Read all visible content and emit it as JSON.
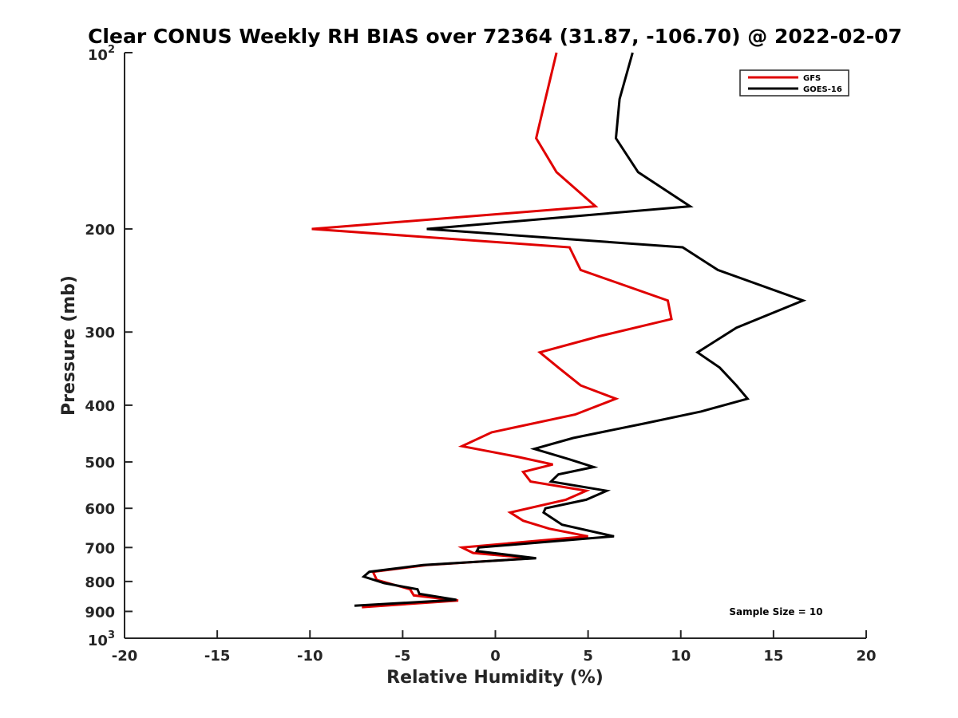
{
  "chart_data": {
    "type": "line",
    "title": "Clear CONUS Weekly RH BIAS over 72364 (31.87, -106.70) @ 2022-02-07",
    "xlabel": "Relative Humidity (%)",
    "ylabel": "Pressure (mb)",
    "xlim": [
      -20,
      20
    ],
    "ylim": [
      100,
      1000
    ],
    "y_scale": "log",
    "y_reversed": true,
    "x_ticks": [
      "-20",
      "-15",
      "-10",
      "-5",
      "0",
      "5",
      "10",
      "15",
      "20"
    ],
    "y_ticks": [
      {
        "value": 100,
        "base": "10",
        "exp": "2"
      },
      {
        "value": 200,
        "label": "200"
      },
      {
        "value": 300,
        "label": "300"
      },
      {
        "value": 400,
        "label": "400"
      },
      {
        "value": 500,
        "label": "500"
      },
      {
        "value": 600,
        "label": "600"
      },
      {
        "value": 700,
        "label": "700"
      },
      {
        "value": 800,
        "label": "800"
      },
      {
        "value": 900,
        "label": "900"
      },
      {
        "value": 1000,
        "base": "10",
        "exp": "3"
      }
    ],
    "grid": false,
    "legend_position": "top-right",
    "annotation": "Sample Size = 10",
    "series": [
      {
        "name": "GFS",
        "color": "#e00000",
        "points": [
          [
            3.3,
            100
          ],
          [
            2.7,
            120
          ],
          [
            2.2,
            140
          ],
          [
            3.3,
            160
          ],
          [
            5.4,
            183
          ],
          [
            -9.9,
            200
          ],
          [
            4.0,
            215
          ],
          [
            4.6,
            235
          ],
          [
            9.3,
            265
          ],
          [
            9.5,
            285
          ],
          [
            5.6,
            305
          ],
          [
            2.4,
            325
          ],
          [
            3.4,
            345
          ],
          [
            4.6,
            370
          ],
          [
            6.5,
            390
          ],
          [
            4.3,
            415
          ],
          [
            -0.2,
            445
          ],
          [
            -1.8,
            470
          ],
          [
            1.2,
            490
          ],
          [
            3.1,
            505
          ],
          [
            1.5,
            520
          ],
          [
            1.9,
            540
          ],
          [
            4.9,
            560
          ],
          [
            3.8,
            580
          ],
          [
            0.8,
            610
          ],
          [
            1.5,
            630
          ],
          [
            2.9,
            650
          ],
          [
            5.0,
            670
          ],
          [
            -1.8,
            700
          ],
          [
            -1.2,
            715
          ],
          [
            2.0,
            730
          ],
          [
            -3.7,
            750
          ],
          [
            -6.6,
            770
          ],
          [
            -6.4,
            795
          ],
          [
            -4.6,
            825
          ],
          [
            -4.4,
            845
          ],
          [
            -2.0,
            862
          ],
          [
            -7.2,
            885
          ]
        ]
      },
      {
        "name": "GOES-16",
        "color": "#000000",
        "points": [
          [
            7.4,
            100
          ],
          [
            6.7,
            120
          ],
          [
            6.5,
            140
          ],
          [
            7.7,
            160
          ],
          [
            10.5,
            183
          ],
          [
            -3.7,
            200
          ],
          [
            10.1,
            215
          ],
          [
            12.0,
            235
          ],
          [
            16.6,
            265
          ],
          [
            13.0,
            295
          ],
          [
            10.9,
            325
          ],
          [
            12.1,
            345
          ],
          [
            13.0,
            370
          ],
          [
            13.6,
            390
          ],
          [
            11.1,
            410
          ],
          [
            8.0,
            430
          ],
          [
            4.2,
            455
          ],
          [
            2.1,
            475
          ],
          [
            4.0,
            495
          ],
          [
            5.3,
            510
          ],
          [
            3.4,
            525
          ],
          [
            3.0,
            540
          ],
          [
            6.0,
            560
          ],
          [
            4.9,
            580
          ],
          [
            2.7,
            600
          ],
          [
            2.6,
            610
          ],
          [
            3.6,
            640
          ],
          [
            6.4,
            670
          ],
          [
            -0.9,
            700
          ],
          [
            -1.0,
            710
          ],
          [
            2.2,
            730
          ],
          [
            -3.9,
            750
          ],
          [
            -6.8,
            770
          ],
          [
            -7.1,
            785
          ],
          [
            -6.0,
            805
          ],
          [
            -4.2,
            825
          ],
          [
            -4.1,
            840
          ],
          [
            -2.1,
            860
          ],
          [
            -7.6,
            880
          ]
        ]
      }
    ]
  }
}
